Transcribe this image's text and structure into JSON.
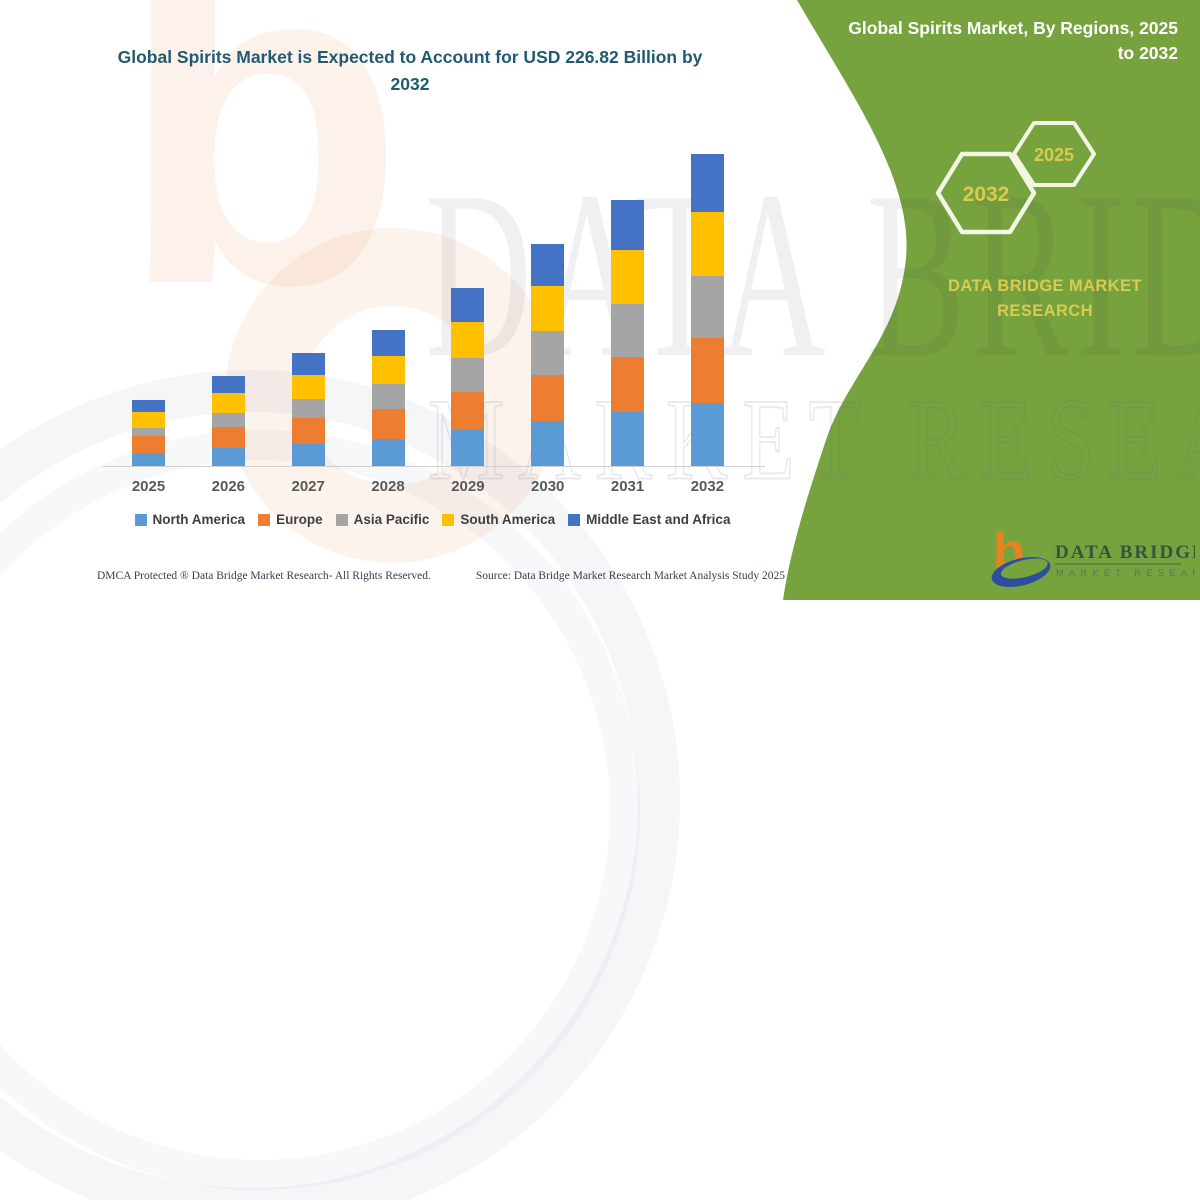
{
  "title": "Global Spirits Market is Expected to Account for USD 226.82 Billion by 2032",
  "panel": {
    "heading": "Global Spirits Market, By Regions, 2025 to 2032",
    "hexagon_large_year": "2032",
    "hexagon_small_year": "2025",
    "brand_text": "DATA BRIDGE MARKET RESEARCH",
    "panel_color": "#76a33e",
    "accent_yellow": "#dcc94f"
  },
  "logo": {
    "wordmark": "DATA BRIDGE",
    "subtitle": "MARKET RESEARCH"
  },
  "watermark": {
    "line1": "DATA BRIDGE",
    "line2": "MARKET RESEARCH",
    "glyph": "b"
  },
  "footer": {
    "left": "DMCA Protected ® Data Bridge Market Research-  All Rights Reserved.",
    "right": "Source: Data Bridge Market Research  Market Analysis Study 2025"
  },
  "chart_data": {
    "type": "bar",
    "stacked": true,
    "title": "Global Spirits Market is Expected to Account for USD 226.82 Billion by 2032",
    "unit": "USD Billion",
    "categories": [
      "2025",
      "2026",
      "2027",
      "2028",
      "2029",
      "2030",
      "2031",
      "2032"
    ],
    "series": [
      {
        "name": "North America",
        "color": "#5b9bd5",
        "values": [
          9.3,
          13.0,
          16.4,
          19.8,
          26.0,
          32.5,
          39.1,
          46.0
        ]
      },
      {
        "name": "Europe",
        "color": "#ed7d31",
        "values": [
          12.4,
          15.2,
          18.3,
          21.6,
          27.6,
          34.0,
          40.6,
          47.5
        ]
      },
      {
        "name": "Asia Pacific",
        "color": "#a5a5a5",
        "values": [
          6.3,
          10.4,
          14.3,
          18.2,
          24.9,
          31.8,
          38.4,
          44.8
        ]
      },
      {
        "name": "South America",
        "color": "#ffc000",
        "values": [
          11.4,
          14.4,
          17.6,
          20.7,
          26.6,
          32.8,
          39.3,
          46.2
        ]
      },
      {
        "name": "Middle East and Africa",
        "color": "#4472c4",
        "values": [
          8.6,
          12.4,
          15.5,
          18.6,
          24.3,
          30.3,
          36.0,
          42.32
        ]
      }
    ],
    "totals": [
      48.0,
      65.4,
      82.1,
      98.9,
      129.4,
      161.4,
      193.4,
      226.82
    ],
    "ylim": [
      0,
      230
    ],
    "grid": false,
    "legend_position": "bottom"
  }
}
